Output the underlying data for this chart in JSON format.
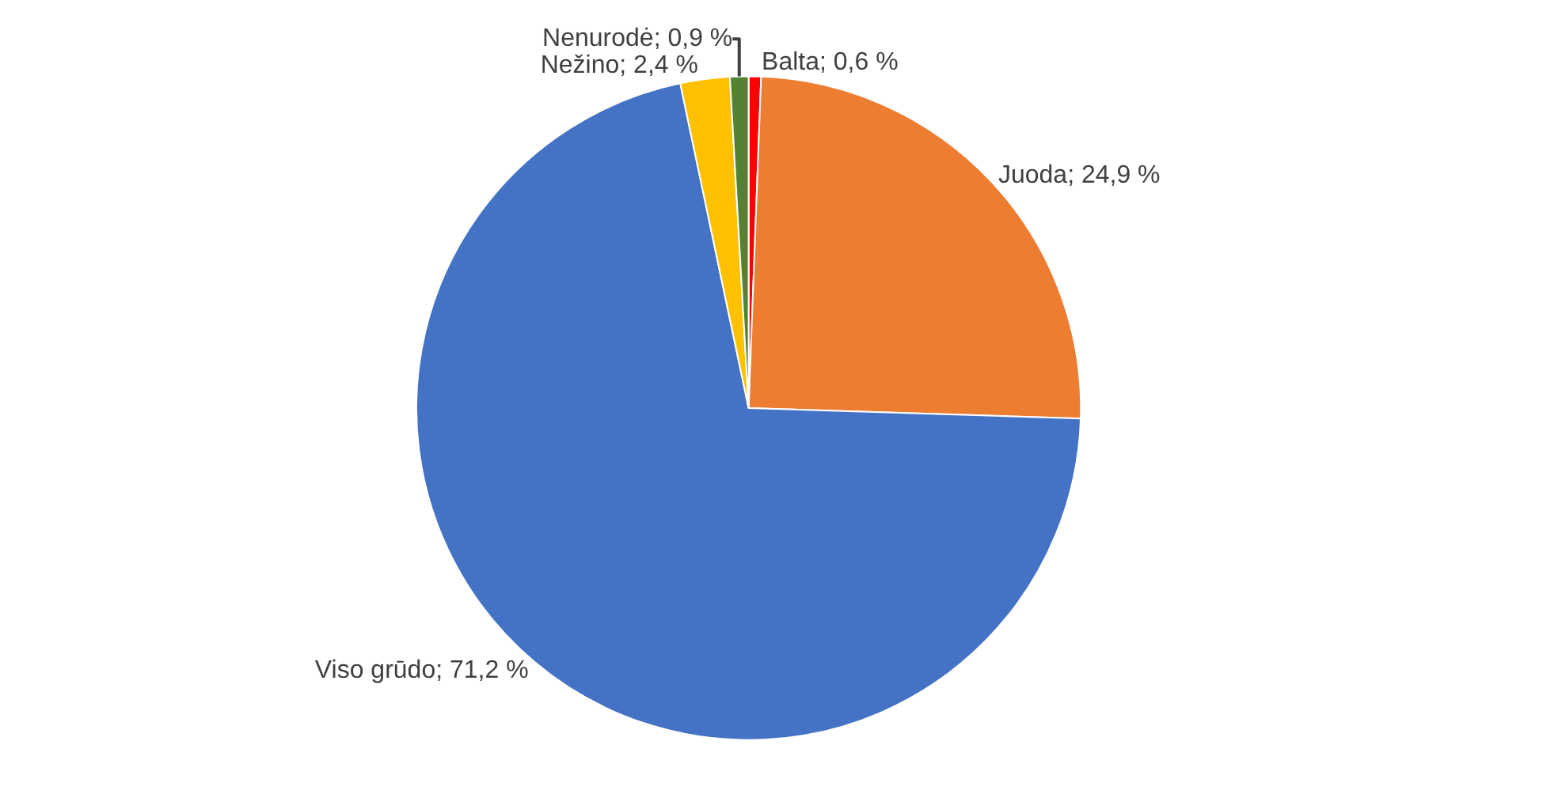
{
  "chart_data": {
    "type": "pie",
    "categories": [
      "Balta",
      "Juoda",
      "Viso grūdo",
      "Nežino",
      "Nenurodė"
    ],
    "values": [
      0.6,
      24.9,
      71.2,
      2.4,
      0.9
    ],
    "value_labels": [
      "0,6 %",
      "24,9 %",
      "71,2 %",
      "2,4 %",
      "0,9 %"
    ],
    "colors": [
      "#ff0000",
      "#ed7d31",
      "#4472c4",
      "#ffc000",
      "#548235"
    ],
    "legend": false
  }
}
